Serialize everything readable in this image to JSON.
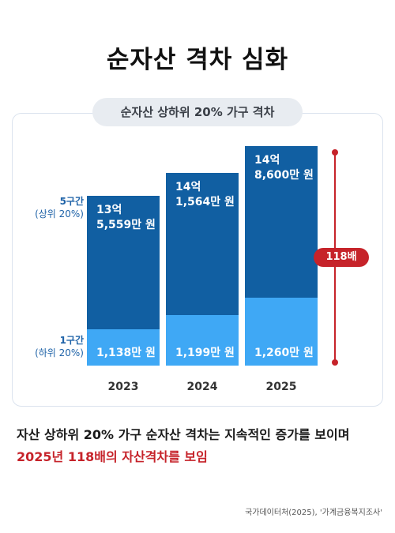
{
  "title": "순자산 격차 심화",
  "subtitle": "순자산 상하위 20% 가구 격차",
  "labels": {
    "top_group": "5구간",
    "top_group_sub": "(상위 20%)",
    "bottom_group": "1구간",
    "bottom_group_sub": "(하위 20%)"
  },
  "ratio_badge": "118배",
  "summary_line1": "자산 상하위 20% 가구 순자산 격차는 지속적인 증가를 보이며",
  "summary_line2": "2025년 118배의 자산격차를 보임",
  "source": "국가데이터처(2025), '가계금융복지조사'",
  "colors": {
    "top": "#115fa2",
    "bottom": "#3fa8f5",
    "accent": "#c6232a"
  },
  "chart_data": {
    "type": "bar",
    "stacked": true,
    "categories": [
      "2023",
      "2024",
      "2025"
    ],
    "series": [
      {
        "name": "1구간 (하위 20%)",
        "values": [
          1138,
          1199,
          1260
        ],
        "labels": [
          "1,138만 원",
          "1,199만 원",
          "1,260만 원"
        ]
      },
      {
        "name": "5구간 (상위 20%)",
        "values": [
          135559,
          141564,
          148600
        ],
        "labels": [
          [
            "13억",
            "5,559만 원"
          ],
          [
            "14억",
            "1,564만 원"
          ],
          [
            "14억",
            "8,600만 원"
          ]
        ]
      }
    ],
    "unit": "만 원",
    "grid": false
  }
}
